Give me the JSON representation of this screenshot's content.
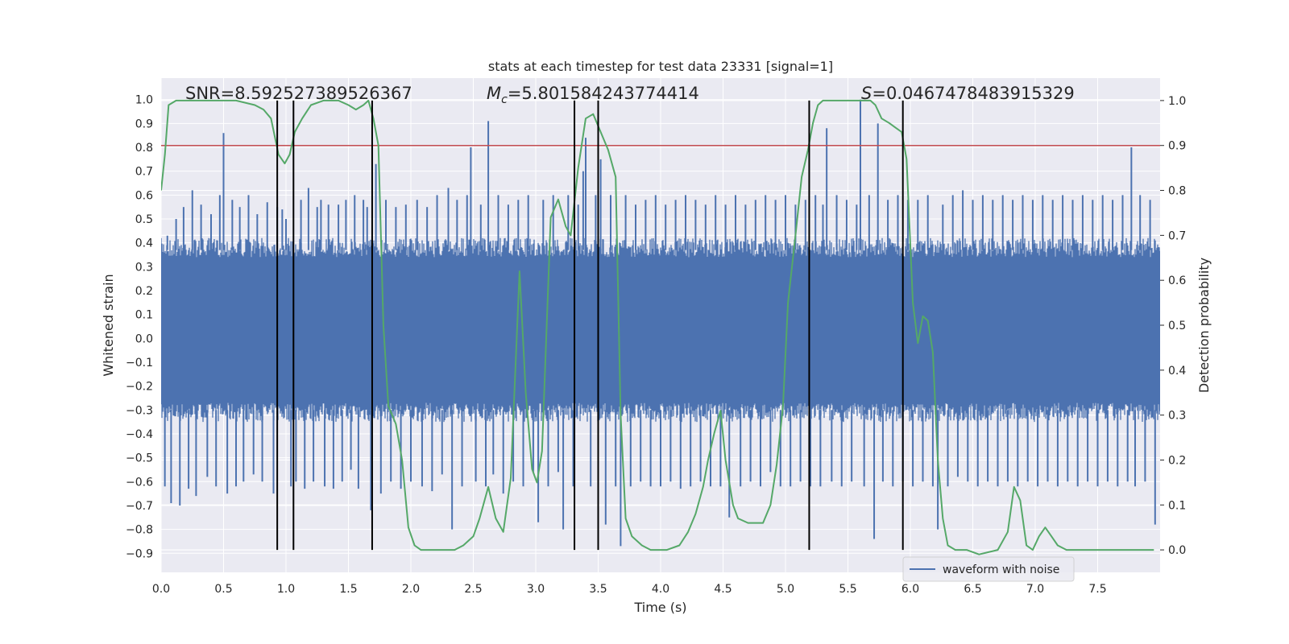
{
  "chart_data": {
    "type": "line",
    "title": "stats at each timestep for test data 23331 [signal=1]",
    "xlabel": "Time (s)",
    "ylabel_left": "Whitened strain",
    "ylabel_right": "Detection probability",
    "xlim": [
      0,
      8
    ],
    "ylim_left": [
      -0.98,
      1.09
    ],
    "ylim_right": [
      -0.05,
      1.05
    ],
    "x_ticks": [
      "0.0",
      "0.5",
      "1.0",
      "1.5",
      "2.0",
      "2.5",
      "3.0",
      "3.5",
      "4.0",
      "4.5",
      "5.0",
      "5.5",
      "6.0",
      "6.5",
      "7.0",
      "7.5"
    ],
    "y_ticks_left": [
      "−0.9",
      "−0.8",
      "−0.7",
      "−0.6",
      "−0.5",
      "−0.4",
      "−0.3",
      "−0.2",
      "−0.1",
      "0.0",
      "0.1",
      "0.2",
      "0.3",
      "0.4",
      "0.5",
      "0.6",
      "0.7",
      "0.8",
      "0.9",
      "1.0"
    ],
    "y_ticks_right": [
      "0.0",
      "0.1",
      "0.2",
      "0.3",
      "0.4",
      "0.5",
      "0.6",
      "0.7",
      "0.8",
      "0.9",
      "1.0"
    ],
    "grid": true,
    "background": "#eaeaf2",
    "annotations": {
      "snr": "SNR=8.592527389526367",
      "mc_symbol": "M",
      "mc_sub": "c",
      "mc_value": "=5.801584243774414",
      "s_symbol": "S",
      "s_value": "=0.0467478483915329"
    },
    "threshold": {
      "value": 0.9,
      "axis": "right",
      "color": "#c44e52"
    },
    "vertical_lines": [
      0.93,
      1.06,
      1.69,
      3.31,
      3.5,
      5.19,
      5.94
    ],
    "vertical_line_range": [
      0.0,
      1.0
    ],
    "waveform": {
      "name": "waveform with noise",
      "color": "#4c72b0",
      "band_low": -0.35,
      "band_high": 0.42,
      "spikes": [
        [
          0.03,
          -0.62
        ],
        [
          0.05,
          0.43
        ],
        [
          0.08,
          -0.69
        ],
        [
          0.12,
          0.5
        ],
        [
          0.15,
          -0.7
        ],
        [
          0.18,
          0.55
        ],
        [
          0.22,
          -0.63
        ],
        [
          0.25,
          0.62
        ],
        [
          0.28,
          -0.66
        ],
        [
          0.32,
          0.56
        ],
        [
          0.37,
          -0.58
        ],
        [
          0.4,
          0.52
        ],
        [
          0.44,
          -0.62
        ],
        [
          0.47,
          0.6
        ],
        [
          0.5,
          0.86
        ],
        [
          0.53,
          -0.65
        ],
        [
          0.57,
          0.58
        ],
        [
          0.6,
          -0.62
        ],
        [
          0.63,
          0.55
        ],
        [
          0.66,
          -0.6
        ],
        [
          0.7,
          0.6
        ],
        [
          0.74,
          -0.57
        ],
        [
          0.77,
          0.52
        ],
        [
          0.81,
          -0.6
        ],
        [
          0.85,
          0.57
        ],
        [
          0.9,
          -0.65
        ],
        [
          0.93,
          0.55
        ],
        [
          0.97,
          0.54
        ],
        [
          1.0,
          0.5
        ],
        [
          1.04,
          -0.62
        ],
        [
          1.08,
          -0.6
        ],
        [
          1.12,
          0.58
        ],
        [
          1.15,
          -0.63
        ],
        [
          1.18,
          0.63
        ],
        [
          1.22,
          -0.6
        ],
        [
          1.25,
          0.55
        ],
        [
          1.28,
          0.58
        ],
        [
          1.31,
          -0.62
        ],
        [
          1.34,
          0.56
        ],
        [
          1.38,
          -0.63
        ],
        [
          1.42,
          0.56
        ],
        [
          1.45,
          -0.6
        ],
        [
          1.48,
          0.58
        ],
        [
          1.52,
          -0.55
        ],
        [
          1.55,
          0.6
        ],
        [
          1.58,
          -0.63
        ],
        [
          1.62,
          0.58
        ],
        [
          1.65,
          0.55
        ],
        [
          1.68,
          -0.72
        ],
        [
          1.72,
          0.73
        ],
        [
          1.76,
          -0.65
        ],
        [
          1.8,
          0.58
        ],
        [
          1.84,
          -0.6
        ],
        [
          1.88,
          0.55
        ],
        [
          1.92,
          -0.63
        ],
        [
          1.96,
          0.56
        ],
        [
          2.0,
          -0.6
        ],
        [
          2.05,
          0.58
        ],
        [
          2.09,
          -0.62
        ],
        [
          2.13,
          0.55
        ],
        [
          2.17,
          -0.64
        ],
        [
          2.21,
          0.6
        ],
        [
          2.25,
          -0.57
        ],
        [
          2.3,
          0.63
        ],
        [
          2.33,
          -0.8
        ],
        [
          2.37,
          0.58
        ],
        [
          2.41,
          -0.62
        ],
        [
          2.45,
          0.6
        ],
        [
          2.48,
          0.8
        ],
        [
          2.52,
          -0.6
        ],
        [
          2.56,
          0.56
        ],
        [
          2.6,
          -0.62
        ],
        [
          2.62,
          0.91
        ],
        [
          2.66,
          -0.57
        ],
        [
          2.7,
          0.6
        ],
        [
          2.74,
          -0.65
        ],
        [
          2.78,
          0.56
        ],
        [
          2.82,
          -0.6
        ],
        [
          2.86,
          0.58
        ],
        [
          2.9,
          -0.62
        ],
        [
          2.94,
          0.6
        ],
        [
          2.98,
          -0.56
        ],
        [
          3.02,
          -0.77
        ],
        [
          3.06,
          0.58
        ],
        [
          3.1,
          -0.62
        ],
        [
          3.14,
          0.6
        ],
        [
          3.18,
          -0.56
        ],
        [
          3.22,
          -0.8
        ],
        [
          3.26,
          0.6
        ],
        [
          3.3,
          -0.62
        ],
        [
          3.34,
          0.56
        ],
        [
          3.38,
          0.7
        ],
        [
          3.4,
          0.84
        ],
        [
          3.44,
          -0.62
        ],
        [
          3.48,
          0.6
        ],
        [
          3.52,
          0.75
        ],
        [
          3.56,
          -0.78
        ],
        [
          3.6,
          0.6
        ],
        [
          3.64,
          -0.62
        ],
        [
          3.68,
          -0.87
        ],
        [
          3.72,
          0.6
        ],
        [
          3.76,
          -0.62
        ],
        [
          3.8,
          0.56
        ],
        [
          3.84,
          -0.6
        ],
        [
          3.88,
          0.58
        ],
        [
          3.92,
          -0.62
        ],
        [
          3.96,
          0.6
        ],
        [
          4.0,
          -0.62
        ],
        [
          4.04,
          0.56
        ],
        [
          4.08,
          -0.6
        ],
        [
          4.12,
          0.58
        ],
        [
          4.16,
          -0.63
        ],
        [
          4.2,
          0.6
        ],
        [
          4.24,
          -0.62
        ],
        [
          4.28,
          0.58
        ],
        [
          4.32,
          -0.6
        ],
        [
          4.36,
          0.56
        ],
        [
          4.4,
          -0.62
        ],
        [
          4.44,
          0.6
        ],
        [
          4.48,
          -0.62
        ],
        [
          4.52,
          0.56
        ],
        [
          4.55,
          -0.75
        ],
        [
          4.6,
          0.6
        ],
        [
          4.64,
          -0.62
        ],
        [
          4.68,
          0.56
        ],
        [
          4.72,
          -0.6
        ],
        [
          4.76,
          0.58
        ],
        [
          4.8,
          -0.62
        ],
        [
          4.84,
          0.6
        ],
        [
          4.88,
          -0.56
        ],
        [
          4.92,
          0.58
        ],
        [
          4.96,
          -0.62
        ],
        [
          5.0,
          0.6
        ],
        [
          5.04,
          -0.62
        ],
        [
          5.08,
          0.56
        ],
        [
          5.12,
          -0.6
        ],
        [
          5.16,
          0.58
        ],
        [
          5.2,
          -0.62
        ],
        [
          5.24,
          0.6
        ],
        [
          5.28,
          -0.62
        ],
        [
          5.3,
          0.56
        ],
        [
          5.33,
          0.88
        ],
        [
          5.37,
          -0.6
        ],
        [
          5.41,
          0.6
        ],
        [
          5.45,
          -0.62
        ],
        [
          5.49,
          0.58
        ],
        [
          5.53,
          -0.6
        ],
        [
          5.57,
          0.56
        ],
        [
          5.6,
          1.0
        ],
        [
          5.63,
          -0.62
        ],
        [
          5.67,
          0.6
        ],
        [
          5.71,
          -0.84
        ],
        [
          5.74,
          0.9
        ],
        [
          5.78,
          -0.6
        ],
        [
          5.82,
          0.58
        ],
        [
          5.86,
          -0.62
        ],
        [
          5.9,
          0.6
        ],
        [
          5.94,
          -0.6
        ],
        [
          5.98,
          0.58
        ],
        [
          6.02,
          -0.62
        ],
        [
          6.06,
          0.58
        ],
        [
          6.1,
          -0.6
        ],
        [
          6.14,
          0.6
        ],
        [
          6.18,
          -0.62
        ],
        [
          6.22,
          -0.8
        ],
        [
          6.26,
          0.56
        ],
        [
          6.3,
          -0.62
        ],
        [
          6.34,
          0.6
        ],
        [
          6.38,
          -0.58
        ],
        [
          6.42,
          0.62
        ],
        [
          6.46,
          -0.6
        ],
        [
          6.5,
          0.58
        ],
        [
          6.54,
          -0.62
        ],
        [
          6.58,
          0.6
        ],
        [
          6.62,
          -0.6
        ],
        [
          6.66,
          0.58
        ],
        [
          6.7,
          -0.62
        ],
        [
          6.74,
          0.6
        ],
        [
          6.78,
          -0.6
        ],
        [
          6.82,
          0.58
        ],
        [
          6.86,
          -0.62
        ],
        [
          6.9,
          0.6
        ],
        [
          6.94,
          -0.6
        ],
        [
          6.98,
          0.58
        ],
        [
          7.02,
          -0.62
        ],
        [
          7.06,
          0.6
        ],
        [
          7.1,
          -0.6
        ],
        [
          7.14,
          0.58
        ],
        [
          7.18,
          -0.62
        ],
        [
          7.22,
          0.6
        ],
        [
          7.26,
          -0.6
        ],
        [
          7.3,
          0.58
        ],
        [
          7.34,
          -0.62
        ],
        [
          7.38,
          0.6
        ],
        [
          7.42,
          -0.6
        ],
        [
          7.46,
          0.58
        ],
        [
          7.5,
          -0.62
        ],
        [
          7.54,
          0.6
        ],
        [
          7.58,
          -0.6
        ],
        [
          7.62,
          0.58
        ],
        [
          7.66,
          -0.62
        ],
        [
          7.7,
          0.6
        ],
        [
          7.74,
          -0.6
        ],
        [
          7.77,
          0.8
        ],
        [
          7.8,
          -0.62
        ],
        [
          7.84,
          0.6
        ],
        [
          7.88,
          -0.6
        ],
        [
          7.92,
          0.58
        ],
        [
          7.96,
          -0.78
        ]
      ]
    },
    "probability": {
      "color": "#55a868",
      "points": [
        [
          0.0,
          0.8
        ],
        [
          0.03,
          0.88
        ],
        [
          0.06,
          0.99
        ],
        [
          0.12,
          1.0
        ],
        [
          0.4,
          1.0
        ],
        [
          0.6,
          1.0
        ],
        [
          0.75,
          0.99
        ],
        [
          0.82,
          0.98
        ],
        [
          0.88,
          0.96
        ],
        [
          0.94,
          0.88
        ],
        [
          0.99,
          0.86
        ],
        [
          1.03,
          0.88
        ],
        [
          1.07,
          0.93
        ],
        [
          1.13,
          0.96
        ],
        [
          1.2,
          0.99
        ],
        [
          1.3,
          1.0
        ],
        [
          1.42,
          1.0
        ],
        [
          1.5,
          0.99
        ],
        [
          1.56,
          0.98
        ],
        [
          1.62,
          0.99
        ],
        [
          1.66,
          1.0
        ],
        [
          1.7,
          0.96
        ],
        [
          1.74,
          0.9
        ],
        [
          1.78,
          0.5
        ],
        [
          1.82,
          0.32
        ],
        [
          1.88,
          0.28
        ],
        [
          1.93,
          0.2
        ],
        [
          1.98,
          0.05
        ],
        [
          2.03,
          0.01
        ],
        [
          2.08,
          0.0
        ],
        [
          2.15,
          0.0
        ],
        [
          2.25,
          0.0
        ],
        [
          2.35,
          0.0
        ],
        [
          2.42,
          0.01
        ],
        [
          2.5,
          0.03
        ],
        [
          2.55,
          0.07
        ],
        [
          2.62,
          0.14
        ],
        [
          2.68,
          0.07
        ],
        [
          2.74,
          0.04
        ],
        [
          2.8,
          0.16
        ],
        [
          2.87,
          0.62
        ],
        [
          2.92,
          0.35
        ],
        [
          2.97,
          0.18
        ],
        [
          3.01,
          0.15
        ],
        [
          3.05,
          0.22
        ],
        [
          3.12,
          0.74
        ],
        [
          3.18,
          0.78
        ],
        [
          3.24,
          0.72
        ],
        [
          3.28,
          0.7
        ],
        [
          3.34,
          0.85
        ],
        [
          3.4,
          0.96
        ],
        [
          3.46,
          0.97
        ],
        [
          3.52,
          0.93
        ],
        [
          3.58,
          0.89
        ],
        [
          3.64,
          0.83
        ],
        [
          3.68,
          0.3
        ],
        [
          3.72,
          0.07
        ],
        [
          3.77,
          0.03
        ],
        [
          3.85,
          0.01
        ],
        [
          3.92,
          0.0
        ],
        [
          4.05,
          0.0
        ],
        [
          4.15,
          0.01
        ],
        [
          4.22,
          0.04
        ],
        [
          4.28,
          0.08
        ],
        [
          4.34,
          0.14
        ],
        [
          4.38,
          0.2
        ],
        [
          4.43,
          0.26
        ],
        [
          4.48,
          0.31
        ],
        [
          4.52,
          0.2
        ],
        [
          4.58,
          0.1
        ],
        [
          4.62,
          0.07
        ],
        [
          4.7,
          0.06
        ],
        [
          4.82,
          0.06
        ],
        [
          4.88,
          0.1
        ],
        [
          4.93,
          0.19
        ],
        [
          4.98,
          0.32
        ],
        [
          5.02,
          0.55
        ],
        [
          5.08,
          0.7
        ],
        [
          5.13,
          0.83
        ],
        [
          5.18,
          0.89
        ],
        [
          5.22,
          0.95
        ],
        [
          5.26,
          0.99
        ],
        [
          5.3,
          1.0
        ],
        [
          5.4,
          1.0
        ],
        [
          5.55,
          1.0
        ],
        [
          5.62,
          1.0
        ],
        [
          5.68,
          1.0
        ],
        [
          5.72,
          0.99
        ],
        [
          5.77,
          0.96
        ],
        [
          5.83,
          0.95
        ],
        [
          5.88,
          0.94
        ],
        [
          5.93,
          0.93
        ],
        [
          5.97,
          0.87
        ],
        [
          6.02,
          0.55
        ],
        [
          6.06,
          0.46
        ],
        [
          6.1,
          0.52
        ],
        [
          6.14,
          0.51
        ],
        [
          6.18,
          0.44
        ],
        [
          6.22,
          0.2
        ],
        [
          6.26,
          0.07
        ],
        [
          6.3,
          0.01
        ],
        [
          6.36,
          0.0
        ],
        [
          6.45,
          0.0
        ],
        [
          6.55,
          -0.01
        ],
        [
          6.7,
          0.0
        ],
        [
          6.78,
          0.04
        ],
        [
          6.83,
          0.14
        ],
        [
          6.88,
          0.11
        ],
        [
          6.93,
          0.01
        ],
        [
          6.98,
          0.0
        ],
        [
          7.03,
          0.03
        ],
        [
          7.08,
          0.05
        ],
        [
          7.13,
          0.03
        ],
        [
          7.18,
          0.01
        ],
        [
          7.25,
          0.0
        ],
        [
          7.4,
          0.0
        ],
        [
          7.6,
          0.0
        ],
        [
          7.8,
          0.0
        ],
        [
          7.95,
          0.0
        ]
      ]
    },
    "legend": {
      "position": "lower-right",
      "entries": [
        "waveform with noise"
      ]
    }
  }
}
